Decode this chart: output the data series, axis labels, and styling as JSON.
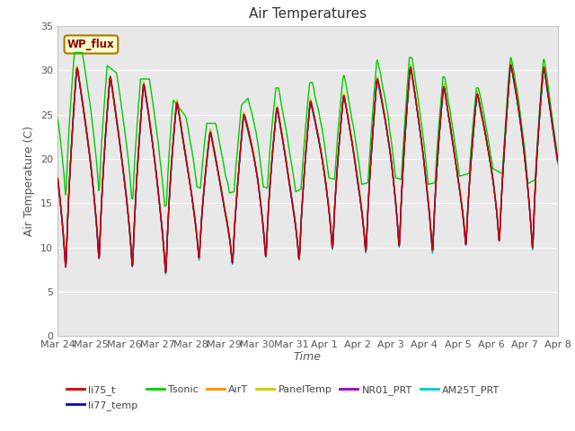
{
  "title": "Air Temperatures",
  "xlabel": "Time",
  "ylabel": "Air Temperature (C)",
  "ylim": [
    0,
    35
  ],
  "n_days": 15,
  "x_tick_labels": [
    "Mar 24",
    "Mar 25",
    "Mar 26",
    "Mar 27",
    "Mar 28",
    "Mar 29",
    "Mar 30",
    "Mar 31",
    "Apr 1",
    "Apr 2",
    "Apr 3",
    "Apr 4",
    "Apr 5",
    "Apr 6",
    "Apr 7",
    "Apr 8"
  ],
  "series_colors": {
    "li75_t": "#cc0000",
    "li77_temp": "#0000cc",
    "Tsonic": "#00cc00",
    "AirT": "#ff8800",
    "PanelTemp": "#cccc00",
    "NR01_PRT": "#9900cc",
    "AM25T_PRT": "#00cccc"
  },
  "annotation_text": "WP_flux",
  "bg_color": "#e8e8e8",
  "title_fontsize": 11,
  "axis_label_fontsize": 9,
  "tick_fontsize": 8,
  "linewidth": 1.0
}
